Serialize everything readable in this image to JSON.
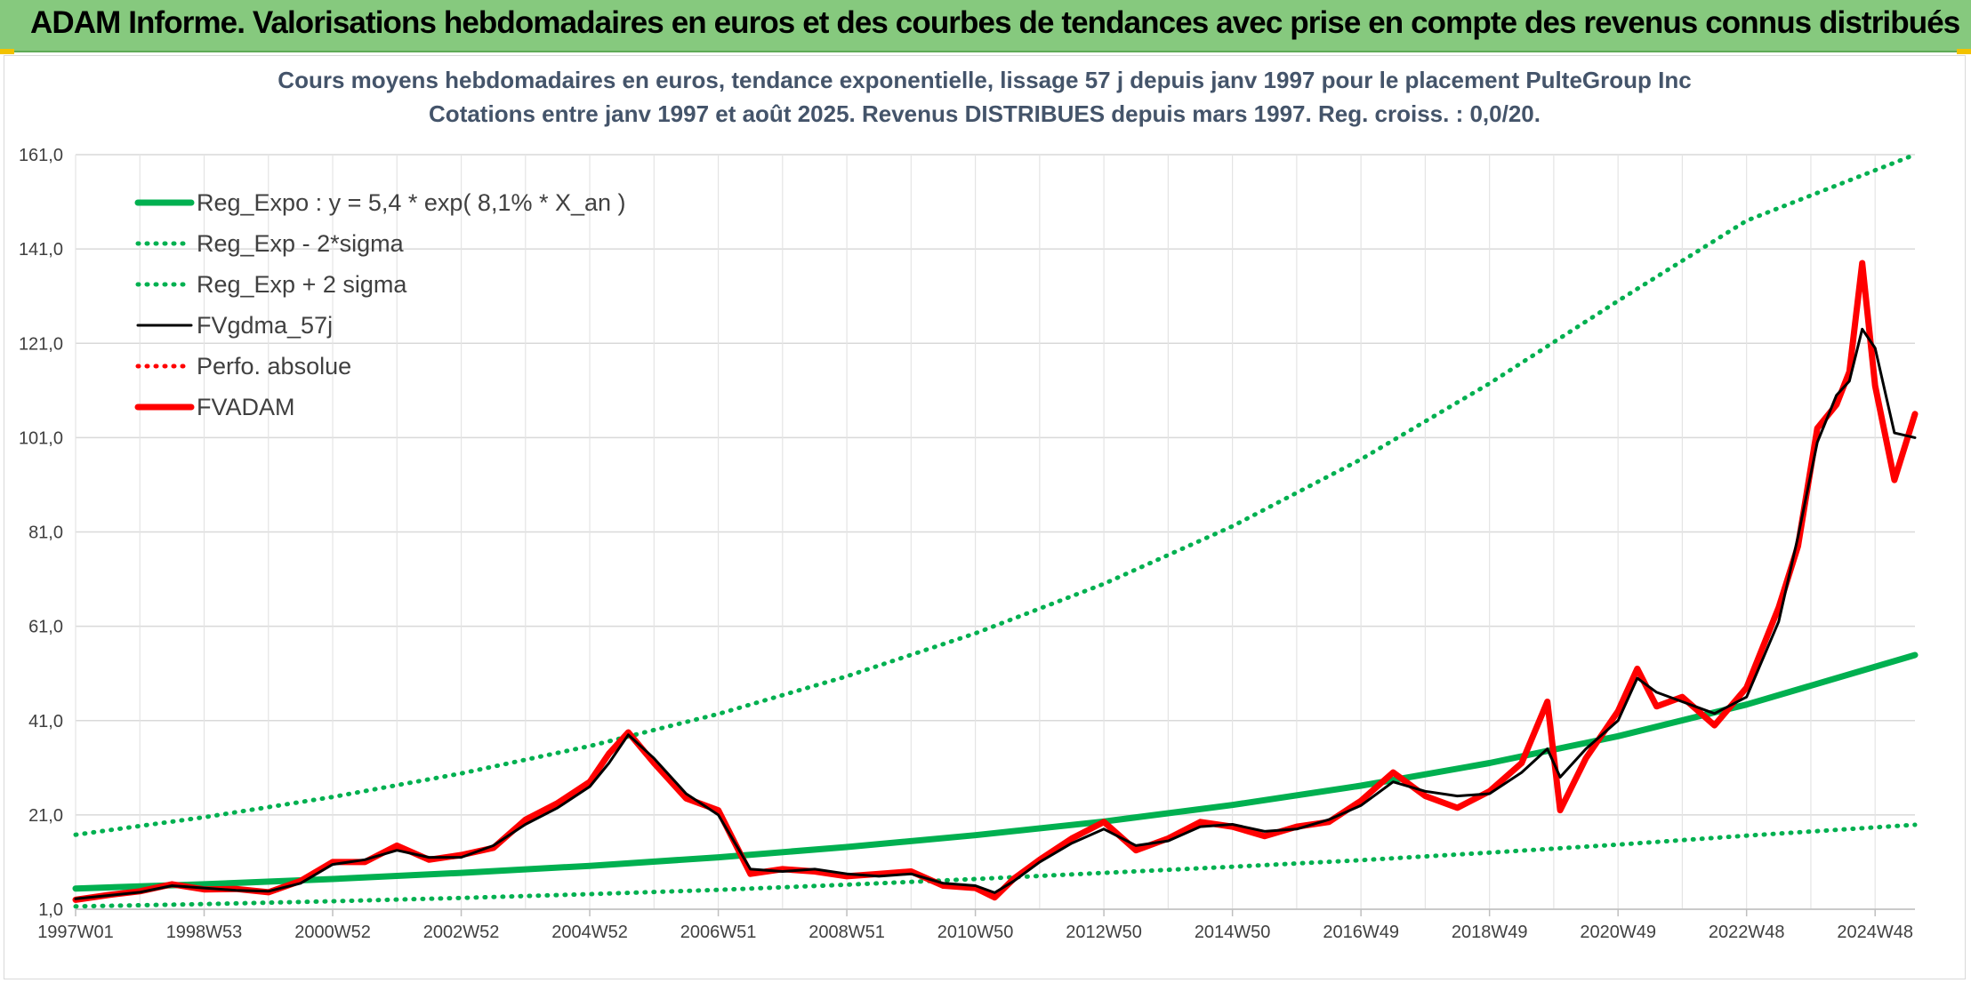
{
  "header": {
    "title": "ADAM Informe. Valorisations hebdomadaires en euros et des courbes de tendances avec prise en compte des revenus connus distribués"
  },
  "chart_data": {
    "type": "line",
    "title_line1": "Cours moyens hebdomadaires en euros, tendance exponentielle, lissage 57 j depuis janv 1997 pour le placement PulteGroup Inc",
    "title_line2": "Cotations entre janv 1997 et août 2025. Revenus DISTRIBUES depuis mars 1997. Reg. croiss. : 0,0/20.",
    "ylim": [
      1,
      161
    ],
    "xlim": [
      1997.0,
      2025.62
    ],
    "y_ticks": [
      "161,0",
      "141,0",
      "121,0",
      "101,0",
      "81,0",
      "61,0",
      "41,0",
      "21,0",
      "1,0"
    ],
    "y_tick_values": [
      161,
      141,
      121,
      101,
      81,
      61,
      41,
      21,
      1
    ],
    "x_ticks": [
      "1997W01",
      "1998W53",
      "2000W52",
      "2002W52",
      "2004W52",
      "2006W51",
      "2008W51",
      "2010W50",
      "2012W50",
      "2014W50",
      "2016W49",
      "2018W49",
      "2020W49",
      "2022W48",
      "2024W48"
    ],
    "x_tick_years": [
      1997.0,
      1999.0,
      2001.0,
      2003.0,
      2005.0,
      2007.0,
      2009.0,
      2011.0,
      2013.0,
      2015.0,
      2017.0,
      2019.0,
      2021.0,
      2023.0,
      2025.0
    ],
    "grid": true,
    "legend_position": "top-left",
    "legend": [
      {
        "label": "Reg_Expo : y = 5,4 * exp( 8,1% *  X_an )",
        "color": "#00b050",
        "style": "solid-thick"
      },
      {
        "label": "Reg_Exp - 2*sigma",
        "color": "#00b050",
        "style": "dotted"
      },
      {
        "label": "Reg_Exp + 2 sigma",
        "color": "#00b050",
        "style": "dotted"
      },
      {
        "label": "FVgdma_57j",
        "color": "#000000",
        "style": "solid"
      },
      {
        "label": "Perfo. absolue",
        "color": "#ff0000",
        "style": "dotted"
      },
      {
        "label": "FVADAM",
        "color": "#ff0000",
        "style": "solid-thick"
      }
    ],
    "series": [
      {
        "name": "Reg_Expo : y = 5,4 * exp( 8,1% *  X_an )",
        "x": [
          1997.0,
          1999.0,
          2001.0,
          2003.0,
          2005.0,
          2007.0,
          2009.0,
          2011.0,
          2013.0,
          2015.0,
          2017.0,
          2019.0,
          2021.0,
          2023.0,
          2025.62
        ],
        "values": [
          5.4,
          6.3,
          7.4,
          8.7,
          10.2,
          12.0,
          14.2,
          16.7,
          19.6,
          23.1,
          27.2,
          32.0,
          37.7,
          44.4,
          54.9
        ]
      },
      {
        "name": "Reg_Exp - 2*sigma",
        "x": [
          1997.0,
          1999.0,
          2001.0,
          2003.0,
          2005.0,
          2007.0,
          2009.0,
          2011.0,
          2013.0,
          2015.0,
          2017.0,
          2019.0,
          2021.0,
          2023.0,
          2025.62
        ],
        "values": [
          1.6,
          2.1,
          2.7,
          3.4,
          4.2,
          5.1,
          6.2,
          7.4,
          8.7,
          10.0,
          11.4,
          13.0,
          14.7,
          16.6,
          18.9
        ]
      },
      {
        "name": "Reg_Exp + 2 sigma",
        "x": [
          1997.0,
          1999.0,
          2001.0,
          2003.0,
          2005.0,
          2007.0,
          2009.0,
          2011.0,
          2013.0,
          2015.0,
          2017.0,
          2019.0,
          2021.0,
          2023.0,
          2025.62
        ],
        "values": [
          16.8,
          20.5,
          24.8,
          29.8,
          35.6,
          42.4,
          50.4,
          59.5,
          70.0,
          82.2,
          96.4,
          112.5,
          130.0,
          147.0,
          161.0
        ]
      },
      {
        "name": "FVgdma_57j",
        "x": [
          1997.0,
          1997.5,
          1998.0,
          1998.5,
          1999.0,
          1999.5,
          2000.0,
          2000.5,
          2001.0,
          2001.5,
          2002.0,
          2002.5,
          2003.0,
          2003.5,
          2004.0,
          2004.5,
          2005.0,
          2005.3,
          2005.6,
          2006.0,
          2006.5,
          2007.0,
          2007.5,
          2008.0,
          2008.5,
          2009.0,
          2009.5,
          2010.0,
          2010.5,
          2011.0,
          2011.3,
          2011.6,
          2012.0,
          2012.5,
          2013.0,
          2013.5,
          2014.0,
          2014.5,
          2015.0,
          2015.5,
          2016.0,
          2016.5,
          2017.0,
          2017.5,
          2018.0,
          2018.5,
          2019.0,
          2019.5,
          2019.9,
          2020.1,
          2020.5,
          2021.0,
          2021.3,
          2021.6,
          2022.0,
          2022.5,
          2023.0,
          2023.5,
          2023.8,
          2024.1,
          2024.4,
          2024.6,
          2024.8,
          2025.0,
          2025.3,
          2025.62
        ],
        "values": [
          3.2,
          3.9,
          4.6,
          6.0,
          5.5,
          5.0,
          4.8,
          6.5,
          10.5,
          11.5,
          13.5,
          12.0,
          12.0,
          14.5,
          19.0,
          22.5,
          27.0,
          32.0,
          38.0,
          33.0,
          25.5,
          21.0,
          9.5,
          9.0,
          9.5,
          8.5,
          8.0,
          8.5,
          6.5,
          6.0,
          4.5,
          7.0,
          11.0,
          15.0,
          18.0,
          14.5,
          15.5,
          18.5,
          19.0,
          17.5,
          18.0,
          20.0,
          23.0,
          28.0,
          26.0,
          25.0,
          25.5,
          30.0,
          35.0,
          29.0,
          35.0,
          41.0,
          50.0,
          47.0,
          45.0,
          42.5,
          46.0,
          62.0,
          80.0,
          100.0,
          110.0,
          113.0,
          124.0,
          120.0,
          102.0,
          101.0
        ]
      },
      {
        "name": "FVADAM",
        "x": [
          1997.0,
          1997.5,
          1998.0,
          1998.5,
          1999.0,
          1999.5,
          2000.0,
          2000.5,
          2001.0,
          2001.5,
          2002.0,
          2002.5,
          2003.0,
          2003.5,
          2004.0,
          2004.5,
          2005.0,
          2005.3,
          2005.6,
          2006.0,
          2006.5,
          2007.0,
          2007.5,
          2008.0,
          2008.5,
          2009.0,
          2009.5,
          2010.0,
          2010.5,
          2011.0,
          2011.3,
          2011.6,
          2012.0,
          2012.5,
          2013.0,
          2013.5,
          2014.0,
          2014.5,
          2015.0,
          2015.5,
          2016.0,
          2016.5,
          2017.0,
          2017.5,
          2018.0,
          2018.5,
          2019.0,
          2019.5,
          2019.9,
          2020.1,
          2020.5,
          2021.0,
          2021.3,
          2021.6,
          2022.0,
          2022.5,
          2023.0,
          2023.5,
          2023.8,
          2024.1,
          2024.4,
          2024.6,
          2024.8,
          2025.0,
          2025.3,
          2025.62
        ],
        "values": [
          3.0,
          4.0,
          4.8,
          6.3,
          5.2,
          5.3,
          4.6,
          7.0,
          11.0,
          11.0,
          14.5,
          11.5,
          12.5,
          14.0,
          20.0,
          23.5,
          28.0,
          34.0,
          38.5,
          32.0,
          24.5,
          22.0,
          8.5,
          9.5,
          9.0,
          8.0,
          8.5,
          9.0,
          6.0,
          5.5,
          3.5,
          7.5,
          11.5,
          16.0,
          19.5,
          13.5,
          16.0,
          19.5,
          18.5,
          16.5,
          18.5,
          19.5,
          24.0,
          30.0,
          25.0,
          22.5,
          26.0,
          32.0,
          45.0,
          22.0,
          33.0,
          43.0,
          52.0,
          44.0,
          46.0,
          40.0,
          48.0,
          65.0,
          78.0,
          103.0,
          108.0,
          115.0,
          138.0,
          112.0,
          92.0,
          106.0
        ]
      }
    ]
  }
}
